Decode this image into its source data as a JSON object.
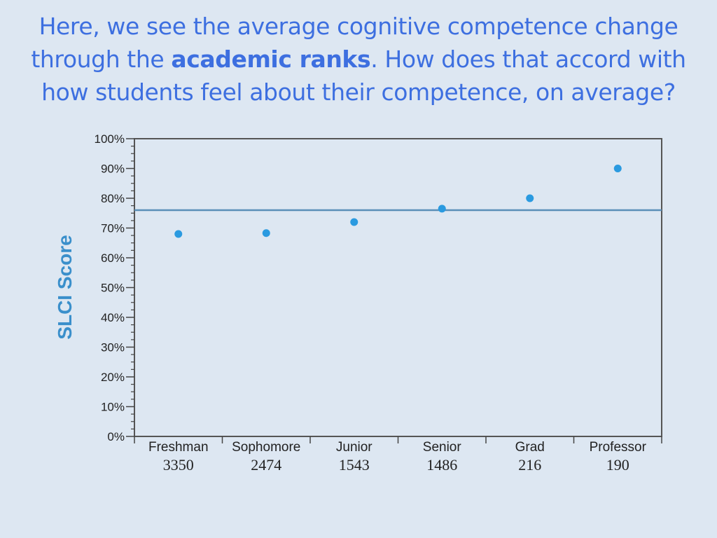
{
  "heading": {
    "before": "Here, we see the average cognitive competence change through the ",
    "emphasis": "academic ranks",
    "after": ". How does that accord with how students feel about their competence, on average?"
  },
  "colors": {
    "heading": "#3d6fe0",
    "point": "#2a9ae0",
    "reference_line": "#5a8fb8",
    "ylabel": "#3a8fcb",
    "background": "#dde7f2"
  },
  "chart_data": {
    "type": "scatter",
    "title": "",
    "xlabel": "",
    "ylabel": "SLCI Score",
    "ylim": [
      0,
      100
    ],
    "y_ticks": [
      "0%",
      "10%",
      "20%",
      "30%",
      "40%",
      "50%",
      "60%",
      "70%",
      "80%",
      "90%",
      "100%"
    ],
    "categories": [
      "Freshman",
      "Sophomore",
      "Junior",
      "Senior",
      "Grad",
      "Professor"
    ],
    "counts": [
      "3350",
      "2474",
      "1543",
      "1486",
      "216",
      "190"
    ],
    "values": [
      68,
      68.3,
      72,
      76.5,
      80,
      90
    ],
    "reference_line": 76,
    "grid": false,
    "legend": "none"
  }
}
